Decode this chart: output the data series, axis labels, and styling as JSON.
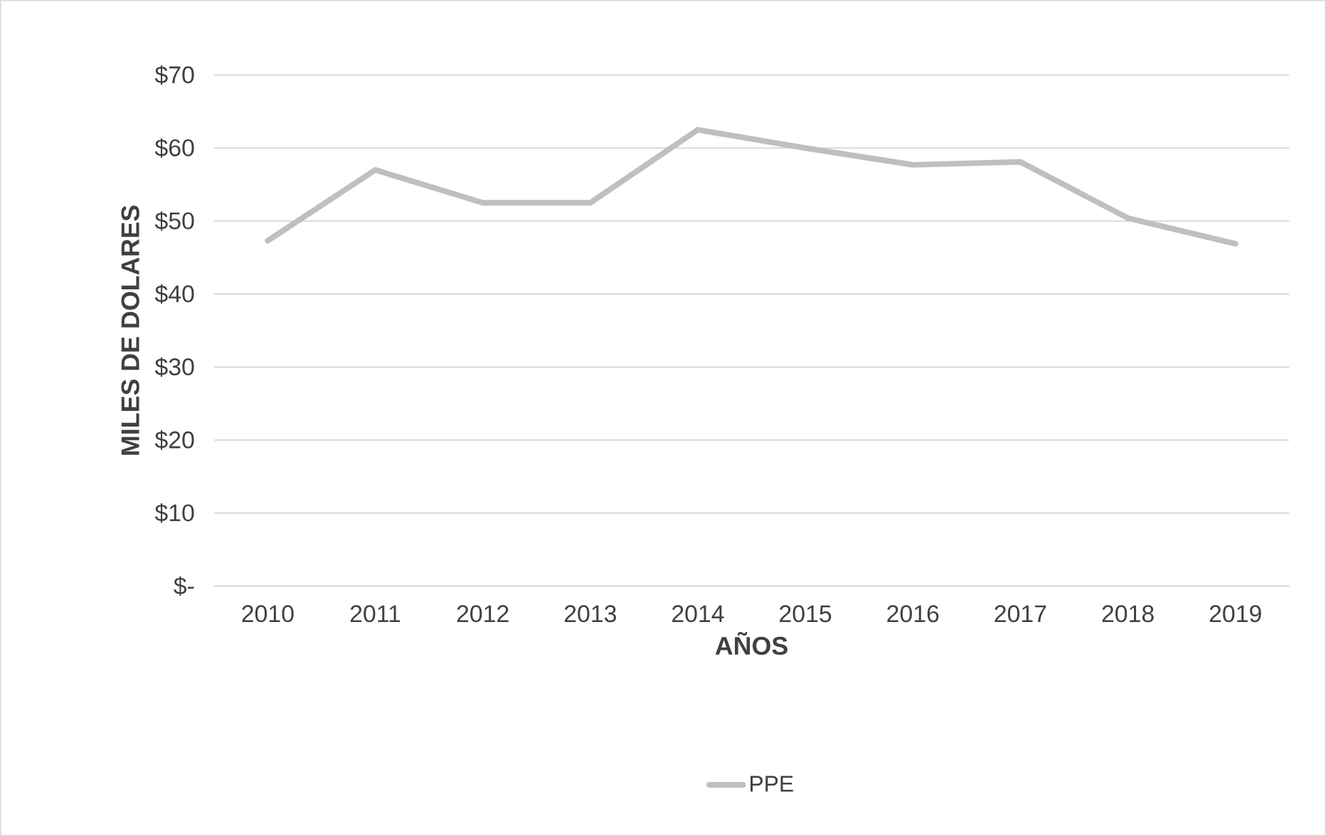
{
  "chart_data": {
    "type": "line",
    "xlabel": "AÑOS",
    "ylabel": "MILES  DE DOLARES",
    "categories": [
      "2010",
      "2011",
      "2012",
      "2013",
      "2014",
      "2015",
      "2016",
      "2017",
      "2018",
      "2019"
    ],
    "series": [
      {
        "name": "PPE",
        "color": "#bfbfbf",
        "values": [
          47.3,
          57.0,
          52.5,
          52.5,
          62.5,
          60.0,
          57.7,
          58.1,
          50.4,
          46.9
        ]
      }
    ],
    "ylim": [
      0,
      70
    ],
    "yticks": [
      {
        "value": 0,
        "label": "$-"
      },
      {
        "value": 10,
        "label": "$10"
      },
      {
        "value": 20,
        "label": "$20"
      },
      {
        "value": 30,
        "label": "$30"
      },
      {
        "value": 40,
        "label": "$40"
      },
      {
        "value": 50,
        "label": "$50"
      },
      {
        "value": 60,
        "label": "$60"
      },
      {
        "value": 70,
        "label": "$70"
      }
    ],
    "grid": "y",
    "legend": "bottom",
    "marker": "none",
    "line_style": "solid"
  }
}
